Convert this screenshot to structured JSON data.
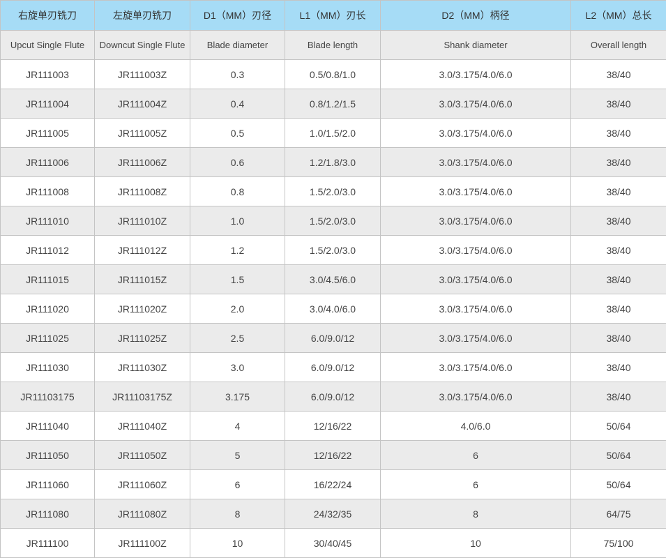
{
  "table": {
    "header": [
      "右旋单刃铣刀",
      "左旋单刃铣刀",
      "D1（MM）刃径",
      "L1（MM）刃长",
      "D2（MM）柄径",
      "L2（MM）总长"
    ],
    "subheader": [
      "Upcut Single Flute",
      "Downcut Single Flute",
      "Blade diameter",
      "Blade length",
      "Shank diameter",
      "Overall length"
    ],
    "rows": [
      [
        "JR111003",
        "JR111003Z",
        "0.3",
        "0.5/0.8/1.0",
        "3.0/3.175/4.0/6.0",
        "38/40"
      ],
      [
        "JR111004",
        "JR111004Z",
        "0.4",
        "0.8/1.2/1.5",
        "3.0/3.175/4.0/6.0",
        "38/40"
      ],
      [
        "JR111005",
        "JR111005Z",
        "0.5",
        "1.0/1.5/2.0",
        "3.0/3.175/4.0/6.0",
        "38/40"
      ],
      [
        "JR111006",
        "JR111006Z",
        "0.6",
        "1.2/1.8/3.0",
        "3.0/3.175/4.0/6.0",
        "38/40"
      ],
      [
        "JR111008",
        "JR111008Z",
        "0.8",
        "1.5/2.0/3.0",
        "3.0/3.175/4.0/6.0",
        "38/40"
      ],
      [
        "JR111010",
        "JR111010Z",
        "1.0",
        "1.5/2.0/3.0",
        "3.0/3.175/4.0/6.0",
        "38/40"
      ],
      [
        "JR111012",
        "JR111012Z",
        "1.2",
        "1.5/2.0/3.0",
        "3.0/3.175/4.0/6.0",
        "38/40"
      ],
      [
        "JR111015",
        "JR111015Z",
        "1.5",
        "3.0/4.5/6.0",
        "3.0/3.175/4.0/6.0",
        "38/40"
      ],
      [
        "JR111020",
        "JR111020Z",
        "2.0",
        "3.0/4.0/6.0",
        "3.0/3.175/4.0/6.0",
        "38/40"
      ],
      [
        "JR111025",
        "JR111025Z",
        "2.5",
        "6.0/9.0/12",
        "3.0/3.175/4.0/6.0",
        "38/40"
      ],
      [
        "JR111030",
        "JR111030Z",
        "3.0",
        "6.0/9.0/12",
        "3.0/3.175/4.0/6.0",
        "38/40"
      ],
      [
        "JR11103175",
        "JR11103175Z",
        "3.175",
        "6.0/9.0/12",
        "3.0/3.175/4.0/6.0",
        "38/40"
      ],
      [
        "JR111040",
        "JR111040Z",
        "4",
        "12/16/22",
        "4.0/6.0",
        "50/64"
      ],
      [
        "JR111050",
        "JR111050Z",
        "5",
        "12/16/22",
        "6",
        "50/64"
      ],
      [
        "JR111060",
        "JR111060Z",
        "6",
        "16/22/24",
        "6",
        "50/64"
      ],
      [
        "JR111080",
        "JR111080Z",
        "8",
        "24/32/35",
        "8",
        "64/75"
      ],
      [
        "JR111100",
        "JR111100Z",
        "10",
        "30/40/45",
        "10",
        "75/100"
      ]
    ]
  }
}
